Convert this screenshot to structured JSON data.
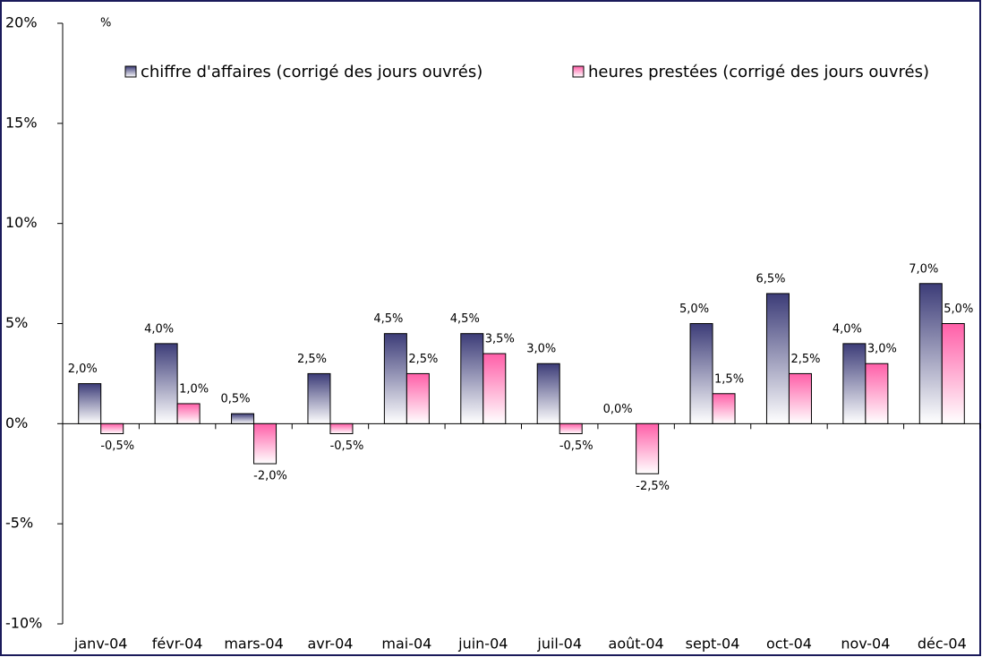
{
  "chart_data": {
    "type": "bar",
    "y_label": "%",
    "categories": [
      "janv-04",
      "févr-04",
      "mars-04",
      "avr-04",
      "mai-04",
      "juin-04",
      "juil-04",
      "août-04",
      "sept-04",
      "oct-04",
      "nov-04",
      "déc-04"
    ],
    "series": [
      {
        "name": "chiffre d'affaires (corrigé des jours ouvrés)",
        "color": "#3c3c78",
        "values": [
          2.0,
          4.0,
          0.5,
          2.5,
          4.5,
          4.5,
          3.0,
          0.0,
          5.0,
          6.5,
          4.0,
          7.0
        ],
        "value_labels": [
          "2,0%",
          "4,0%",
          "0,5%",
          "2,5%",
          "4,5%",
          "4,5%",
          "3,0%",
          "0,0%",
          "5,0%",
          "6,5%",
          "4,0%",
          "7,0%"
        ]
      },
      {
        "name": "heures prestées (corrigé des jours ouvrés)",
        "color": "#ff5fa8",
        "values": [
          -0.5,
          1.0,
          -2.0,
          -0.5,
          2.5,
          3.5,
          -0.5,
          -2.5,
          1.5,
          2.5,
          3.0,
          5.0
        ],
        "value_labels": [
          "-0,5%",
          "1,0%",
          "-2,0%",
          "-0,5%",
          "2,5%",
          "3,5%",
          "-0,5%",
          "-2,5%",
          "1,5%",
          "2,5%",
          "3,0%",
          "5,0%"
        ]
      }
    ],
    "ylim": [
      -10,
      20
    ],
    "yticks": [
      {
        "value": -10,
        "label": "-10%"
      },
      {
        "value": -5,
        "label": "-5%"
      },
      {
        "value": 0,
        "label": "0%"
      },
      {
        "value": 5,
        "label": "5%"
      },
      {
        "value": 10,
        "label": "10%"
      },
      {
        "value": 15,
        "label": "15%"
      },
      {
        "value": 20,
        "label": "20%"
      }
    ]
  }
}
